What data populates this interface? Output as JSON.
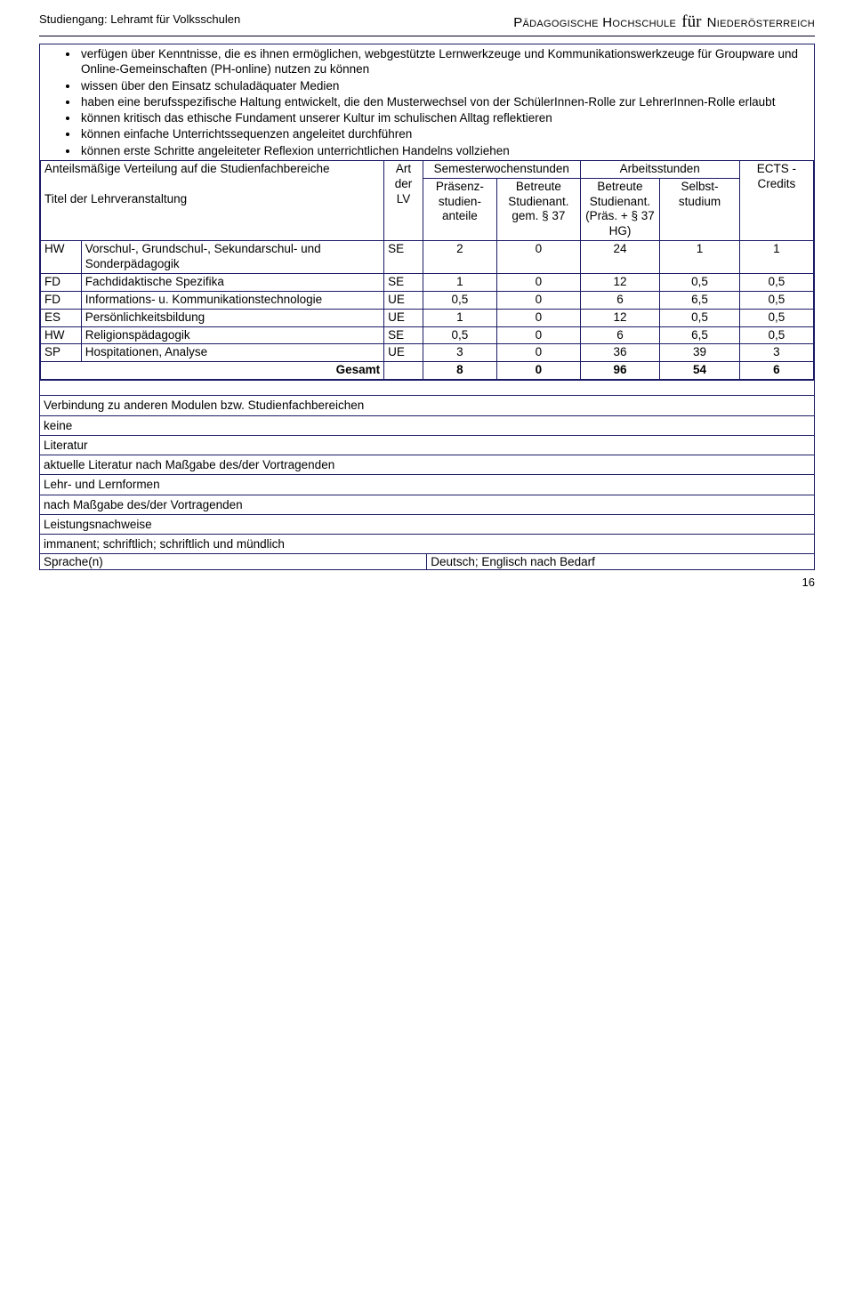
{
  "header": {
    "left": "Studiengang: Lehramt für Volksschulen",
    "right_a": "Pädagogische Hochschule",
    "right_fur": "für",
    "right_b": "Niederösterreich"
  },
  "bullets": [
    "verfügen über Kenntnisse, die es ihnen ermöglichen, webgestützte Lernwerkzeuge und Kommunikationswerkzeuge für Groupware und Online-Gemeinschaften (PH-online) nutzen zu können",
    "wissen über den Einsatz schuladäquater Medien",
    "haben eine berufsspezifische Haltung entwickelt, die den Musterwechsel von der SchülerInnen-Rolle zur LehrerInnen-Rolle erlaubt",
    "können kritisch das ethische Fundament unserer Kultur im schulischen Alltag reflektieren",
    "können einfache Unterrichtssequenzen angeleitet durchführen",
    "können erste Schritte angeleiteter Reflexion unterrichtlichen Handelns vollziehen"
  ],
  "thead": {
    "left_top": "Anteilsmäßige Verteilung auf die Studienfachbereiche",
    "left_bottom": "Titel der Lehrveranstaltung",
    "art": "Art der LV",
    "sws": "Semesterwochenstunden",
    "arb": "Arbeitsstunden",
    "praes": "Präsenz-studien-anteile",
    "betr1": "Betreute Studienant. gem. § 37",
    "betr2": "Betreute Studienant. (Präs. + § 37 HG)",
    "selbst": "Selbst-studium",
    "ects": "ECTS - Credits"
  },
  "rows": [
    {
      "cat": "HW",
      "title": "Vorschul-, Grundschul-, Sekundarschul- und Sonderpädagogik",
      "art": "SE",
      "v": [
        "2",
        "0",
        "24",
        "1",
        "1"
      ]
    },
    {
      "cat": "FD",
      "title": "Fachdidaktische Spezifika",
      "art": "SE",
      "v": [
        "1",
        "0",
        "12",
        "0,5",
        "0,5"
      ]
    },
    {
      "cat": "FD",
      "title": "Informations- u. Kommunikationstechnologie",
      "art": "UE",
      "v": [
        "0,5",
        "0",
        "6",
        "6,5",
        "0,5"
      ]
    },
    {
      "cat": "ES",
      "title": "Persönlichkeitsbildung",
      "art": "UE",
      "v": [
        "1",
        "0",
        "12",
        "0,5",
        "0,5"
      ]
    },
    {
      "cat": "HW",
      "title": "Religionspädagogik",
      "art": "SE",
      "v": [
        "0,5",
        "0",
        "6",
        "6,5",
        "0,5"
      ]
    },
    {
      "cat": "SP",
      "title": "Hospitationen, Analyse",
      "art": "UE",
      "v": [
        "3",
        "0",
        "36",
        "39",
        "3"
      ]
    }
  ],
  "total": {
    "label": "Gesamt",
    "v": [
      "8",
      "0",
      "96",
      "54",
      "6"
    ]
  },
  "foot": {
    "link_hdr": "Verbindung zu anderen Modulen bzw. Studienfachbereichen",
    "link_val": "keine",
    "lit_hdr": "Literatur",
    "lit_val": "aktuelle Literatur nach Maßgabe des/der Vortragenden",
    "form_hdr": "Lehr- und Lernformen",
    "form_val": "nach Maßgabe des/der Vortragenden",
    "leist_hdr": "Leistungsnachweise",
    "leist_val": "immanent; schriftlich; schriftlich und mündlich",
    "lang_hdr": "Sprache(n)",
    "lang_val": "Deutsch; Englisch nach Bedarf"
  },
  "colwidths": {
    "cat": 44,
    "title": 327,
    "art": 42,
    "c1": 80,
    "c2": 90,
    "c3": 86,
    "c4": 86,
    "c5": 80
  },
  "pagenum": "16"
}
